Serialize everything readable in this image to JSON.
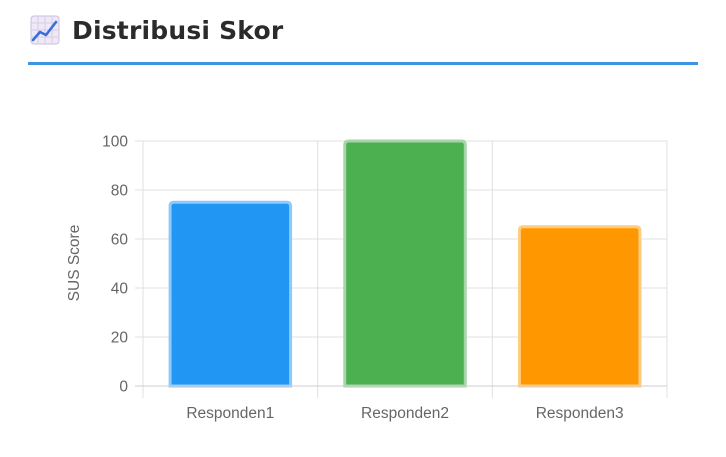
{
  "header": {
    "title": "Distribusi Skor",
    "icon": "chart-increasing-icon"
  },
  "colors": {
    "accent_rule": "#3d94e0",
    "grid": "#e0e0e0",
    "axis_text": "#666666"
  },
  "chart_data": {
    "type": "bar",
    "categories": [
      "Responden1",
      "Responden2",
      "Responden3"
    ],
    "values": [
      75,
      100,
      65
    ],
    "bar_fill": [
      "#2196f3",
      "#4caf50",
      "#ff9800"
    ],
    "bar_border": [
      "#90caf9",
      "#a5d6a7",
      "#ffcc80"
    ],
    "ylabel": "SUS Score",
    "xlabel": "",
    "ylim": [
      0,
      100
    ],
    "yticks": [
      0,
      20,
      40,
      60,
      80,
      100
    ],
    "grid": true,
    "legend": "none"
  }
}
